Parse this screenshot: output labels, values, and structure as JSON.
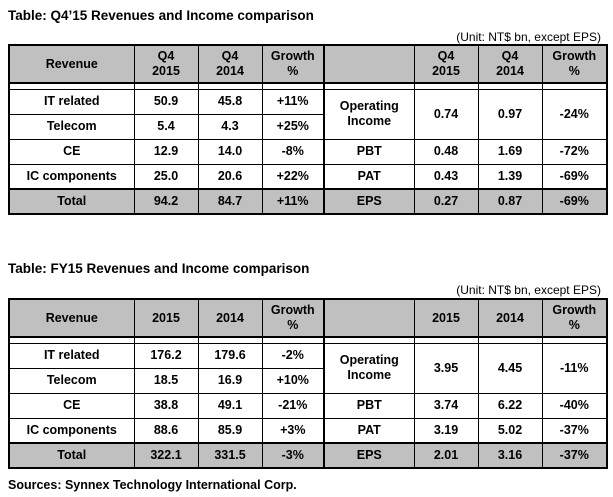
{
  "q4": {
    "title": "Table: Q4’15 Revenues  and Income  comparison",
    "unit": "(Unit: NT$ bn, except EPS)",
    "left_headers": [
      "Revenue",
      "Q4\n2015",
      "Q4\n2014",
      "Growth\n%"
    ],
    "right_headers": [
      "",
      "Q4\n2015",
      "Q4\n2014",
      "Growth\n%"
    ],
    "revenue_rows": [
      {
        "name": "IT related",
        "v2015": "50.9",
        "v2014": "45.8",
        "growth": "+11%"
      },
      {
        "name": "Telecom",
        "v2015": "5.4",
        "v2014": "4.3",
        "growth": "+25%"
      },
      {
        "name": "CE",
        "v2015": "12.9",
        "v2014": "14.0",
        "growth": "-8%"
      },
      {
        "name": "IC components",
        "v2015": "25.0",
        "v2014": "20.6",
        "growth": "+22%"
      }
    ],
    "revenue_total": {
      "name": "Total",
      "v2015": "94.2",
      "v2014": "84.7",
      "growth": "+11%"
    },
    "income_rows": [
      {
        "name": "Operating\nIncome",
        "v2015": "0.74",
        "v2014": "0.97",
        "growth": "-24%"
      },
      {
        "name": "PBT",
        "v2015": "0.48",
        "v2014": "1.69",
        "growth": "-72%"
      },
      {
        "name": "PAT",
        "v2015": "0.43",
        "v2014": "1.39",
        "growth": "-69%"
      }
    ],
    "income_total": {
      "name": "EPS",
      "v2015": "0.27",
      "v2014": "0.87",
      "growth": "-69%"
    }
  },
  "fy": {
    "title": "Table: FY15 Revenues  and Income  comparison",
    "unit": "(Unit: NT$ bn, except EPS)",
    "left_headers": [
      "Revenue",
      "2015",
      "2014",
      "Growth\n%"
    ],
    "right_headers": [
      "",
      "2015",
      "2014",
      "Growth\n%"
    ],
    "revenue_rows": [
      {
        "name": "IT related",
        "v2015": "176.2",
        "v2014": "179.6",
        "growth": "-2%"
      },
      {
        "name": "Telecom",
        "v2015": "18.5",
        "v2014": "16.9",
        "growth": "+10%"
      },
      {
        "name": "CE",
        "v2015": "38.8",
        "v2014": "49.1",
        "growth": "-21%"
      },
      {
        "name": "IC components",
        "v2015": "88.6",
        "v2014": "85.9",
        "growth": "+3%"
      }
    ],
    "revenue_total": {
      "name": "Total",
      "v2015": "322.1",
      "v2014": "331.5",
      "growth": "-3%"
    },
    "income_rows": [
      {
        "name": "Operating\nIncome",
        "v2015": "3.95",
        "v2014": "4.45",
        "growth": "-11%"
      },
      {
        "name": "PBT",
        "v2015": "3.74",
        "v2014": "6.22",
        "growth": "-40%"
      },
      {
        "name": "PAT",
        "v2015": "3.19",
        "v2014": "5.02",
        "growth": "-37%"
      }
    ],
    "income_total": {
      "name": "EPS",
      "v2015": "2.01",
      "v2014": "3.16",
      "growth": "-37%"
    }
  },
  "source": "Sources: Synnex Technology International Corp."
}
